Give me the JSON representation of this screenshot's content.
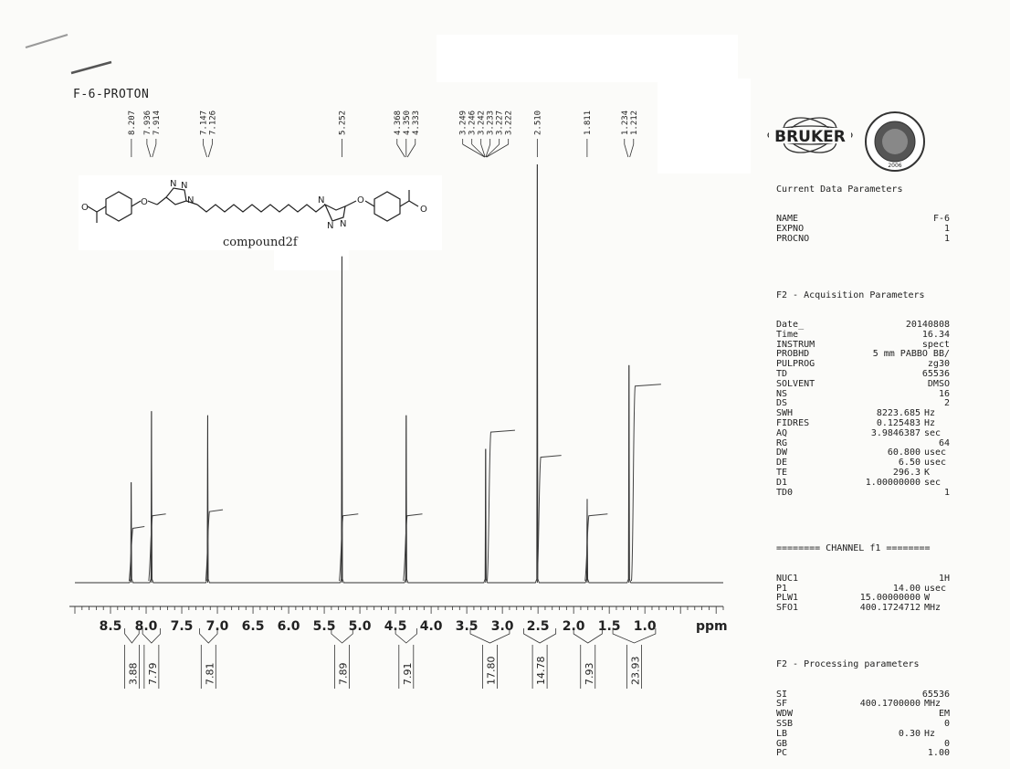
{
  "sample": {
    "title": "F-6-PROTON"
  },
  "compound_label": "compound2f",
  "logos": {
    "brand": "BRUKER",
    "seal_year": "2006",
    "seal_name": "DISSERTATION UNIVERSITY"
  },
  "params": {
    "current_header": "Current Data Parameters",
    "current": [
      {
        "k": "NAME",
        "v": "F-6",
        "u": ""
      },
      {
        "k": "EXPNO",
        "v": "1",
        "u": ""
      },
      {
        "k": "PROCNO",
        "v": "1",
        "u": ""
      }
    ],
    "acq_header": "F2 - Acquisition Parameters",
    "acq": [
      {
        "k": "Date_",
        "v": "20140808",
        "u": ""
      },
      {
        "k": "Time",
        "v": "16.34",
        "u": ""
      },
      {
        "k": "INSTRUM",
        "v": "spect",
        "u": ""
      },
      {
        "k": "PROBHD",
        "v": "5 mm PABBO BB/",
        "u": ""
      },
      {
        "k": "PULPROG",
        "v": "zg30",
        "u": ""
      },
      {
        "k": "TD",
        "v": "65536",
        "u": ""
      },
      {
        "k": "SOLVENT",
        "v": "DMSO",
        "u": ""
      },
      {
        "k": "NS",
        "v": "16",
        "u": ""
      },
      {
        "k": "DS",
        "v": "2",
        "u": ""
      },
      {
        "k": "SWH",
        "v": "8223.685",
        "u": "Hz"
      },
      {
        "k": "FIDRES",
        "v": "0.125483",
        "u": "Hz"
      },
      {
        "k": "AQ",
        "v": "3.9846387",
        "u": "sec"
      },
      {
        "k": "RG",
        "v": "64",
        "u": ""
      },
      {
        "k": "DW",
        "v": "60.800",
        "u": "usec"
      },
      {
        "k": "DE",
        "v": "6.50",
        "u": "usec"
      },
      {
        "k": "TE",
        "v": "296.3",
        "u": "K"
      },
      {
        "k": "D1",
        "v": "1.00000000",
        "u": "sec"
      },
      {
        "k": "TD0",
        "v": "1",
        "u": ""
      }
    ],
    "channel_header": "======== CHANNEL f1 ========",
    "channel": [
      {
        "k": "NUC1",
        "v": "1H",
        "u": ""
      },
      {
        "k": "P1",
        "v": "14.00",
        "u": "usec"
      },
      {
        "k": "PLW1",
        "v": "15.00000000",
        "u": "W"
      },
      {
        "k": "SFO1",
        "v": "400.1724712",
        "u": "MHz"
      }
    ],
    "proc_header": "F2 - Processing parameters",
    "proc": [
      {
        "k": "SI",
        "v": "65536",
        "u": ""
      },
      {
        "k": "SF",
        "v": "400.1700000",
        "u": "MHz"
      },
      {
        "k": "WDW",
        "v": "EM",
        "u": ""
      },
      {
        "k": "SSB",
        "v": "0",
        "u": ""
      },
      {
        "k": "LB",
        "v": "0.30",
        "u": "Hz"
      },
      {
        "k": "GB",
        "v": "0",
        "u": ""
      },
      {
        "k": "PC",
        "v": "1.00",
        "u": ""
      }
    ]
  },
  "chart_data": {
    "type": "line",
    "xlabel": "ppm",
    "xlim": [
      9.0,
      -0.1
    ],
    "reversed_x": true,
    "ticks": [
      8.5,
      8.0,
      7.5,
      7.0,
      6.5,
      6.0,
      5.5,
      5.0,
      4.5,
      4.0,
      3.5,
      3.0,
      2.5,
      2.0,
      1.5,
      1.0
    ],
    "tick_labels": [
      "8.5",
      "8.0",
      "7.5",
      "7.0",
      "6.5",
      "6.0",
      "5.5",
      "5.0",
      "4.5",
      "4.0",
      "3.5",
      "3.0",
      "2.5",
      "2.0",
      "1.5",
      "1.0"
    ],
    "peak_labels": [
      {
        "ppm": 8.207,
        "label": "8.207"
      },
      {
        "ppm": 7.936,
        "label": "7.936"
      },
      {
        "ppm": 7.914,
        "label": "7.914"
      },
      {
        "ppm": 7.147,
        "label": "7.147"
      },
      {
        "ppm": 7.126,
        "label": "7.126"
      },
      {
        "ppm": 5.252,
        "label": "5.252"
      },
      {
        "ppm": 4.368,
        "label": "4.368"
      },
      {
        "ppm": 4.35,
        "label": "4.350"
      },
      {
        "ppm": 4.333,
        "label": "4.333"
      },
      {
        "ppm": 3.249,
        "label": "3.249"
      },
      {
        "ppm": 3.246,
        "label": "3.246"
      },
      {
        "ppm": 3.242,
        "label": "3.242"
      },
      {
        "ppm": 3.233,
        "label": "3.233"
      },
      {
        "ppm": 3.227,
        "label": "3.227"
      },
      {
        "ppm": 3.222,
        "label": "3.222"
      },
      {
        "ppm": 2.51,
        "label": "2.510"
      },
      {
        "ppm": 1.811,
        "label": "1.811"
      },
      {
        "ppm": 1.234,
        "label": "1.234"
      },
      {
        "ppm": 1.212,
        "label": "1.212"
      }
    ],
    "peaks": [
      {
        "ppm": 8.21,
        "h": 0.24
      },
      {
        "ppm": 7.925,
        "h": 0.41
      },
      {
        "ppm": 7.136,
        "h": 0.4
      },
      {
        "ppm": 5.252,
        "h": 0.78
      },
      {
        "ppm": 4.35,
        "h": 0.4
      },
      {
        "ppm": 3.235,
        "h": 0.32
      },
      {
        "ppm": 2.51,
        "h": 1.0
      },
      {
        "ppm": 1.81,
        "h": 0.2
      },
      {
        "ppm": 1.223,
        "h": 0.52
      }
    ],
    "integrals": [
      {
        "from": 8.3,
        "to": 8.1,
        "value": "3.88"
      },
      {
        "from": 8.05,
        "to": 7.8,
        "value": "7.79"
      },
      {
        "from": 7.25,
        "to": 7.0,
        "value": "7.81"
      },
      {
        "from": 5.4,
        "to": 5.1,
        "value": "7.89"
      },
      {
        "from": 4.5,
        "to": 4.2,
        "value": "7.91"
      },
      {
        "from": 3.45,
        "to": 2.9,
        "value": "17.80"
      },
      {
        "from": 2.7,
        "to": 2.25,
        "value": "14.78"
      },
      {
        "from": 2.0,
        "to": 1.6,
        "value": "7.93"
      },
      {
        "from": 1.45,
        "to": 0.85,
        "value": "23.93"
      }
    ],
    "integral_curve_levels": [
      0.13,
      0.0,
      0.16,
      0.0,
      0.17,
      0.0,
      0.16,
      0.0,
      0.16,
      0.0,
      0.36,
      0.0,
      0.3,
      0.0,
      0.16,
      0.0,
      0.47
    ]
  }
}
